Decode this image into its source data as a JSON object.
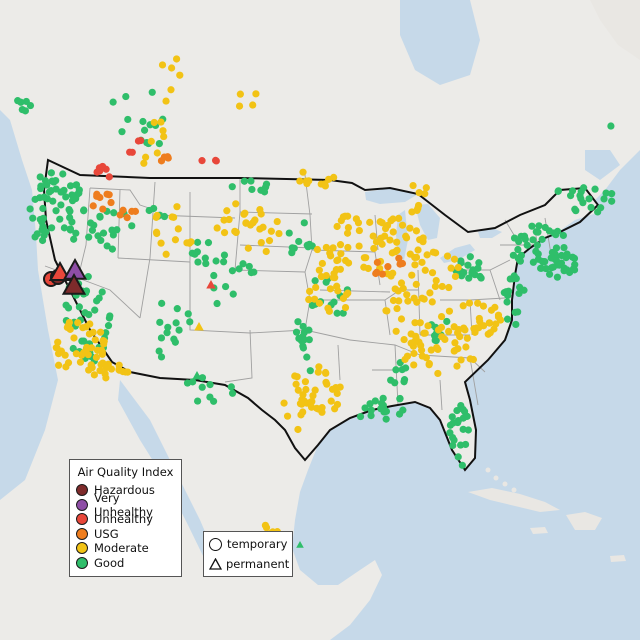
{
  "legend": {
    "title": "Air Quality Index",
    "categories": [
      {
        "label": "Hazardous",
        "color": "#7e2b2b"
      },
      {
        "label": "Very Unhealthy",
        "color": "#8e4ea6"
      },
      {
        "label": "Unhealthy",
        "color": "#e8473a"
      },
      {
        "label": "USG",
        "color": "#ee7d1e"
      },
      {
        "label": "Moderate",
        "color": "#f2c315"
      },
      {
        "label": "Good",
        "color": "#2fbe6a"
      }
    ]
  },
  "shape_legend": {
    "temporary": "temporary",
    "permanent": "permanent"
  },
  "colors": {
    "ocean": "#c6d9e9",
    "land": "#ecebe8",
    "neighbor_land": "#e9e7e3",
    "border": "#111111",
    "state_line": "#a0a0a0"
  }
}
